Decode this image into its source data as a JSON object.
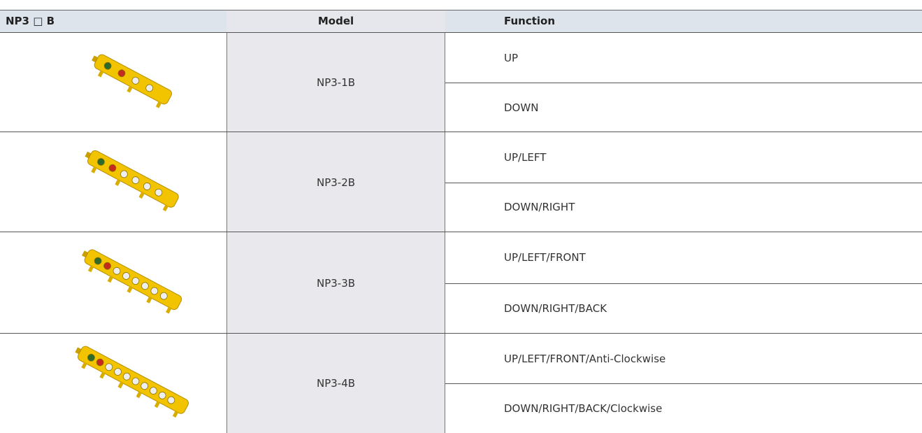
{
  "table": {
    "headers": [
      "NP3 □ B",
      "Model",
      "Function"
    ],
    "rows": [
      {
        "model": "NP3-1B",
        "functions": [
          "UP",
          "DOWN"
        ]
      },
      {
        "model": "NP3-2B",
        "functions": [
          "UP/LEFT",
          "DOWN/RIGHT"
        ]
      },
      {
        "model": "NP3-3B",
        "functions": [
          "UP/LEFT/FRONT",
          "DOWN/RIGHT/BACK"
        ]
      },
      {
        "model": "NP3-4B",
        "functions": [
          "UP/LEFT/FRONT/Anti-Clockwise",
          "DOWN/RIGHT/BACK/Clockwise"
        ]
      }
    ]
  }
}
